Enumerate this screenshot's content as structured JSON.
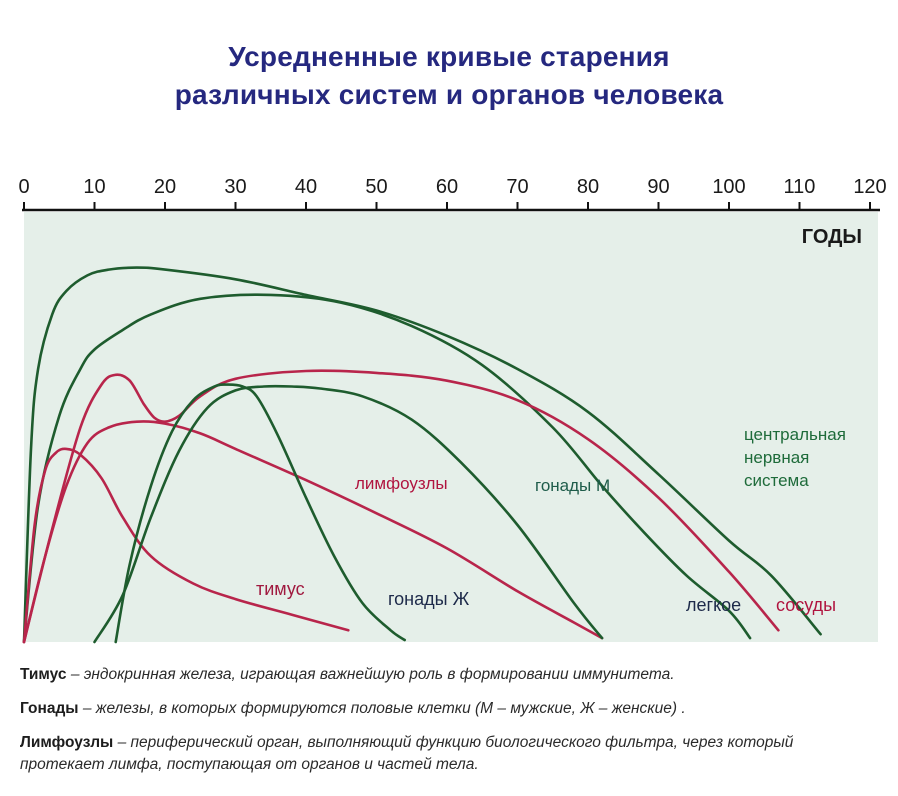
{
  "title": {
    "line1": "Усредненные кривые старения",
    "line2": "различных систем и органов человека"
  },
  "colors": {
    "title": "#25287f",
    "plot_background": "#e5efe9",
    "axis": "#111111",
    "series_green": "#1e5c2e",
    "series_red": "#b8254b",
    "label_green": "#1e6b3a",
    "label_red": "#b0143f",
    "label_dark": "#1d2a4a"
  },
  "chart_data": {
    "type": "line",
    "xlabel": "ГОДЫ",
    "xlim": [
      0,
      120
    ],
    "xticks": [
      0,
      10,
      20,
      30,
      40,
      50,
      60,
      70,
      80,
      90,
      100,
      110,
      120
    ],
    "xtick_labels": [
      "0",
      "10",
      "20",
      "30",
      "40",
      "50",
      "60",
      "70",
      "80",
      "90",
      "100",
      "110",
      "120"
    ],
    "ylim": [
      0,
      100
    ],
    "grid": false,
    "series": [
      {
        "name": "центральная нервная система",
        "color": "#1e5c2e",
        "x": [
          0,
          1,
          2,
          4,
          6,
          9,
          12,
          16,
          20,
          30,
          40,
          50,
          60,
          70,
          80,
          90,
          100,
          106,
          113
        ],
        "y": [
          0,
          50,
          70,
          84,
          90,
          94,
          95.5,
          96,
          95.5,
          93,
          89,
          85,
          78.5,
          70,
          59,
          43,
          26,
          17,
          2
        ]
      },
      {
        "name": "легкое",
        "color": "#1e5c2e",
        "x": [
          0,
          2,
          5,
          8,
          10,
          14,
          18,
          25,
          35,
          45,
          55,
          65,
          75,
          82,
          88,
          94,
          100,
          103
        ],
        "y": [
          0,
          35,
          58,
          70,
          75,
          80,
          84,
          88,
          89,
          87,
          81,
          71,
          55,
          40,
          28,
          17,
          8,
          1
        ]
      },
      {
        "name": "сосуды",
        "color": "#b8254b",
        "x": [
          0,
          4,
          8,
          11,
          13,
          15,
          17,
          18.5,
          20,
          22,
          25,
          30,
          40,
          50,
          60,
          70,
          80,
          90,
          100,
          107
        ],
        "y": [
          0,
          29,
          55,
          66,
          68.5,
          67,
          61,
          57.5,
          56.5,
          58,
          63,
          67.5,
          69.5,
          69,
          67,
          62,
          52,
          37,
          18,
          3
        ]
      },
      {
        "name": "лимфоузлы",
        "color": "#b8254b",
        "x": [
          0,
          3,
          6,
          9,
          12,
          16,
          20,
          25,
          30,
          40,
          50,
          60,
          70,
          78,
          82
        ],
        "y": [
          0,
          22,
          40,
          51,
          55,
          56.5,
          56,
          53.5,
          49.5,
          41.5,
          33,
          24,
          13,
          5,
          1
        ]
      },
      {
        "name": "тимус",
        "color": "#b8254b",
        "x": [
          0,
          1.5,
          3,
          4.5,
          6,
          8,
          11,
          14,
          18,
          24,
          30,
          38,
          46
        ],
        "y": [
          0,
          30,
          44,
          48.5,
          49.5,
          48,
          42,
          32,
          22,
          15,
          11,
          7,
          3
        ]
      },
      {
        "name": "гонады Ж",
        "color": "#1e5c2e",
        "x": [
          13,
          15,
          18,
          21,
          24,
          27,
          29,
          31,
          33,
          36,
          40,
          44,
          48,
          52,
          54
        ],
        "y": [
          0,
          20,
          40,
          54,
          62,
          65.5,
          66,
          65.5,
          63,
          53,
          37,
          22,
          10,
          3,
          0.5
        ]
      },
      {
        "name": "гонады М",
        "color": "#1e5c2e",
        "x": [
          10,
          14,
          18,
          22,
          26,
          30,
          34,
          38,
          42,
          48,
          55,
          62,
          70,
          78,
          82
        ],
        "y": [
          0,
          12,
          32,
          49,
          60,
          64.5,
          65.5,
          65.5,
          65,
          63,
          57,
          46,
          30,
          10,
          1
        ]
      }
    ]
  },
  "series_labels": {
    "cns_line1": "центральная",
    "cns_line2": "нервная",
    "cns_line3": "система",
    "lungs": "легкое",
    "vessels": "сосуды",
    "lymph": "лимфоузлы",
    "gonads_m": "гонады М",
    "thymus": "тимус",
    "gonads_f": "гонады Ж"
  },
  "notes": [
    {
      "term": "Тимус",
      "desc": " – эндокринная железа, играющая важнейшую роль в формировании иммунитета."
    },
    {
      "term": "Гонады",
      "desc": " – железы, в которых формируются половые клетки (М – мужские, Ж – женские) ."
    },
    {
      "term": "Лимфоузлы",
      "desc": " – периферический орган, выполняющий функцию биологического фильтра, через который протекает лимфа, поступающая от органов и частей тела."
    }
  ]
}
